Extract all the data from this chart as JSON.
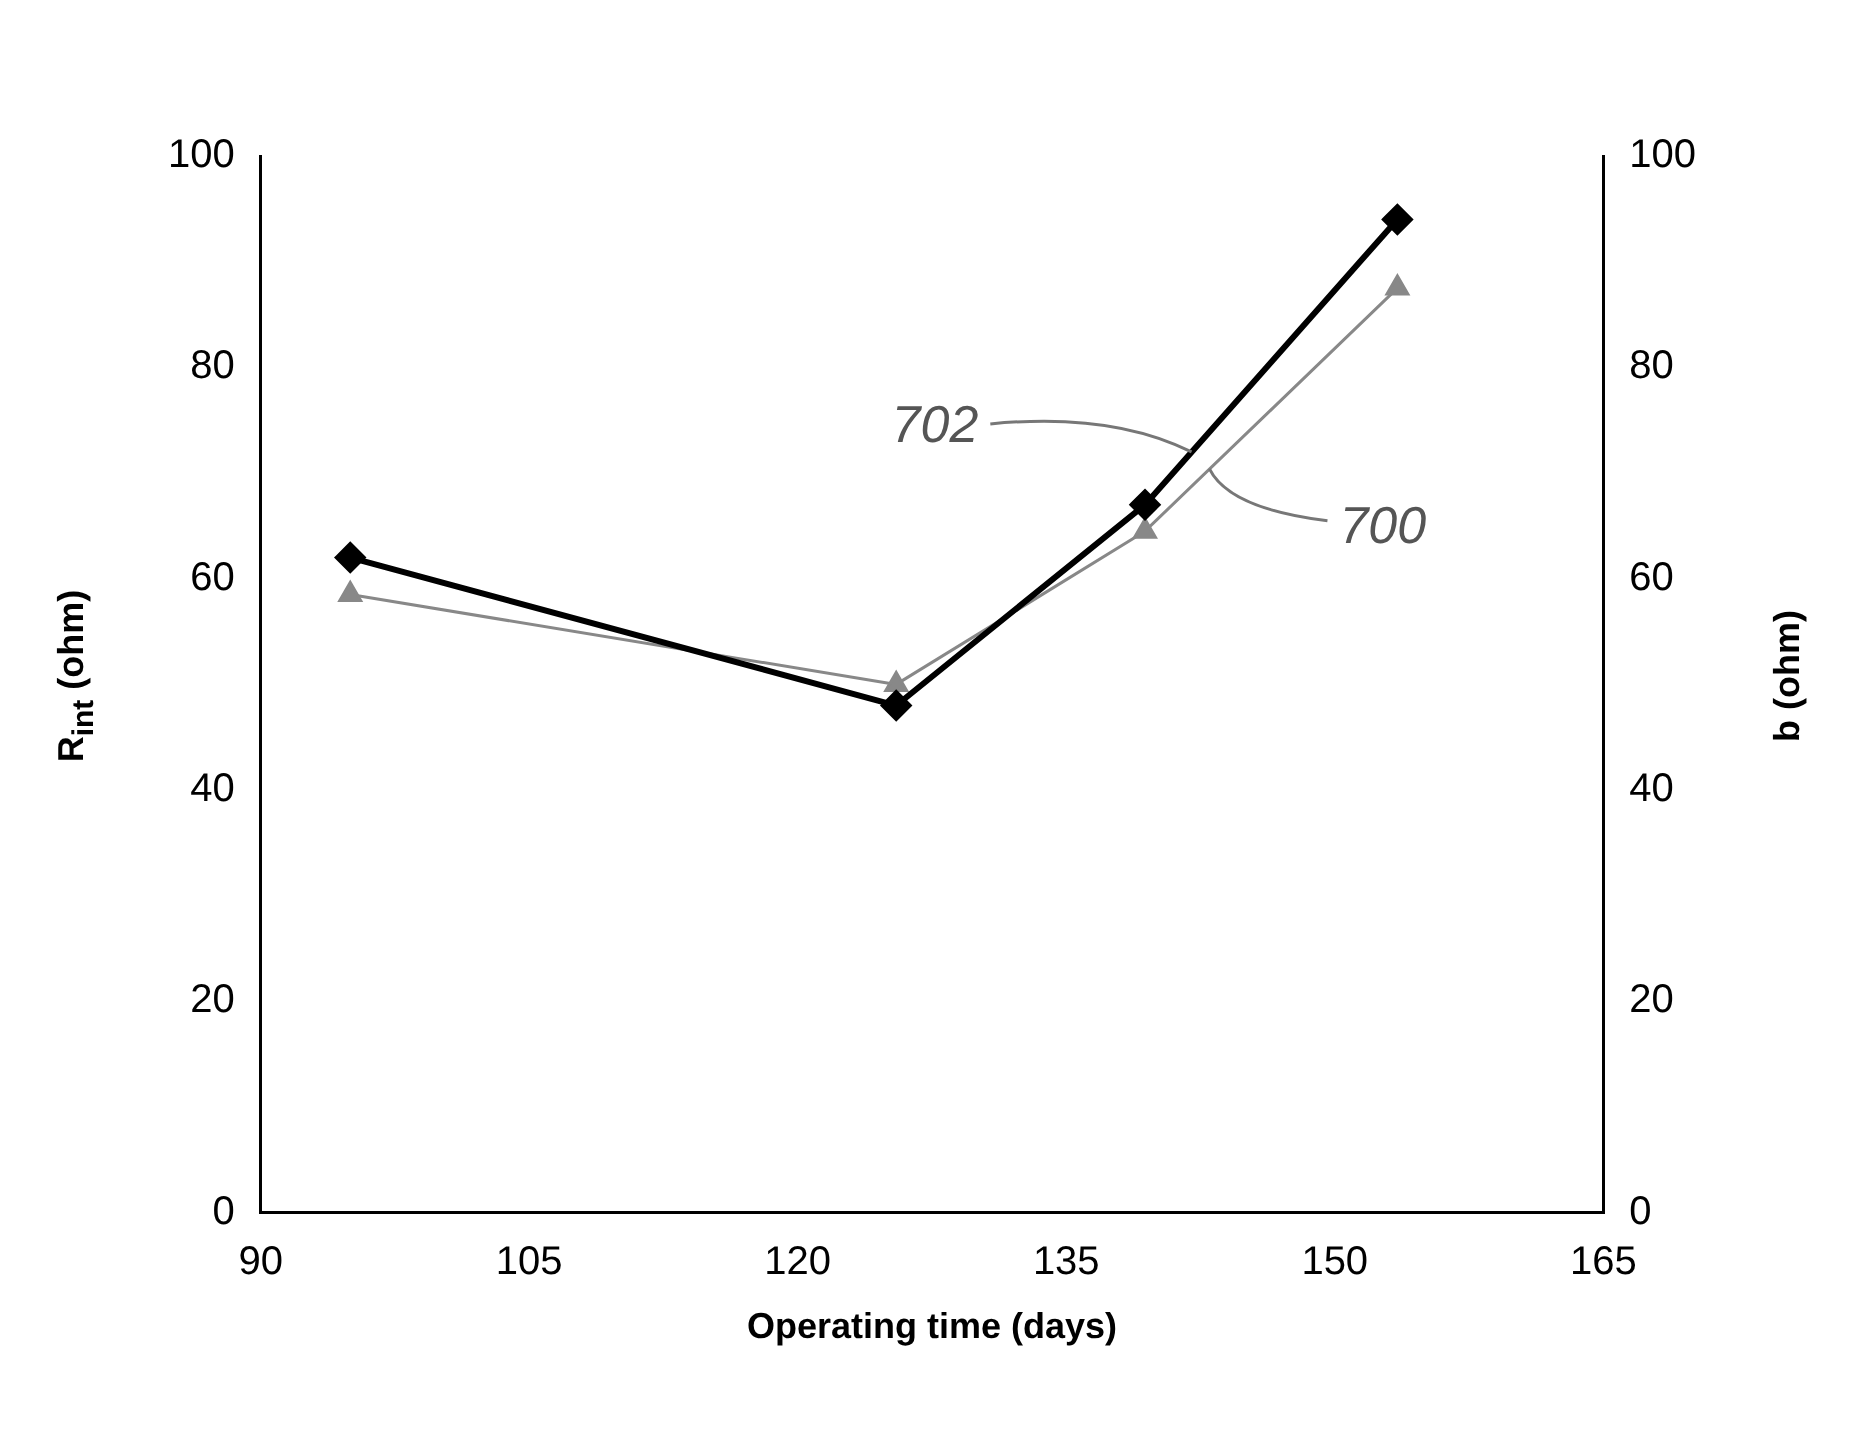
{
  "chart_data": {
    "type": "line",
    "xlabel": "Operating time (days)",
    "ylabel": "R$_{int}$ (ohm)",
    "y2label": "b (ohm)",
    "xlim": [
      90,
      165
    ],
    "xticks": [
      90,
      105,
      120,
      135,
      150,
      165
    ],
    "ylim": [
      0,
      100
    ],
    "yticks": [
      0,
      20,
      40,
      60,
      80,
      100
    ],
    "y2lim": [
      0,
      100
    ],
    "y2ticks": [
      0,
      20,
      40,
      60,
      80,
      100
    ],
    "grid": false,
    "legend": false,
    "series": [
      {
        "color": "#000000",
        "marker": "diamond",
        "x": [
          95,
          125.5,
          139.4,
          153.5
        ],
        "values": [
          62,
          48,
          67,
          94
        ]
      },
      {
        "color": "#888888",
        "marker": "triangle",
        "axis": "y2",
        "x": [
          95,
          125.5,
          139.4,
          153.5
        ],
        "values": [
          58.5,
          50,
          64.5,
          87.5
        ]
      }
    ],
    "annotations": [
      {
        "text": "702",
        "x": 142,
        "y": 72
      },
      {
        "text": "700",
        "x": 143,
        "y": 70.4
      }
    ]
  }
}
